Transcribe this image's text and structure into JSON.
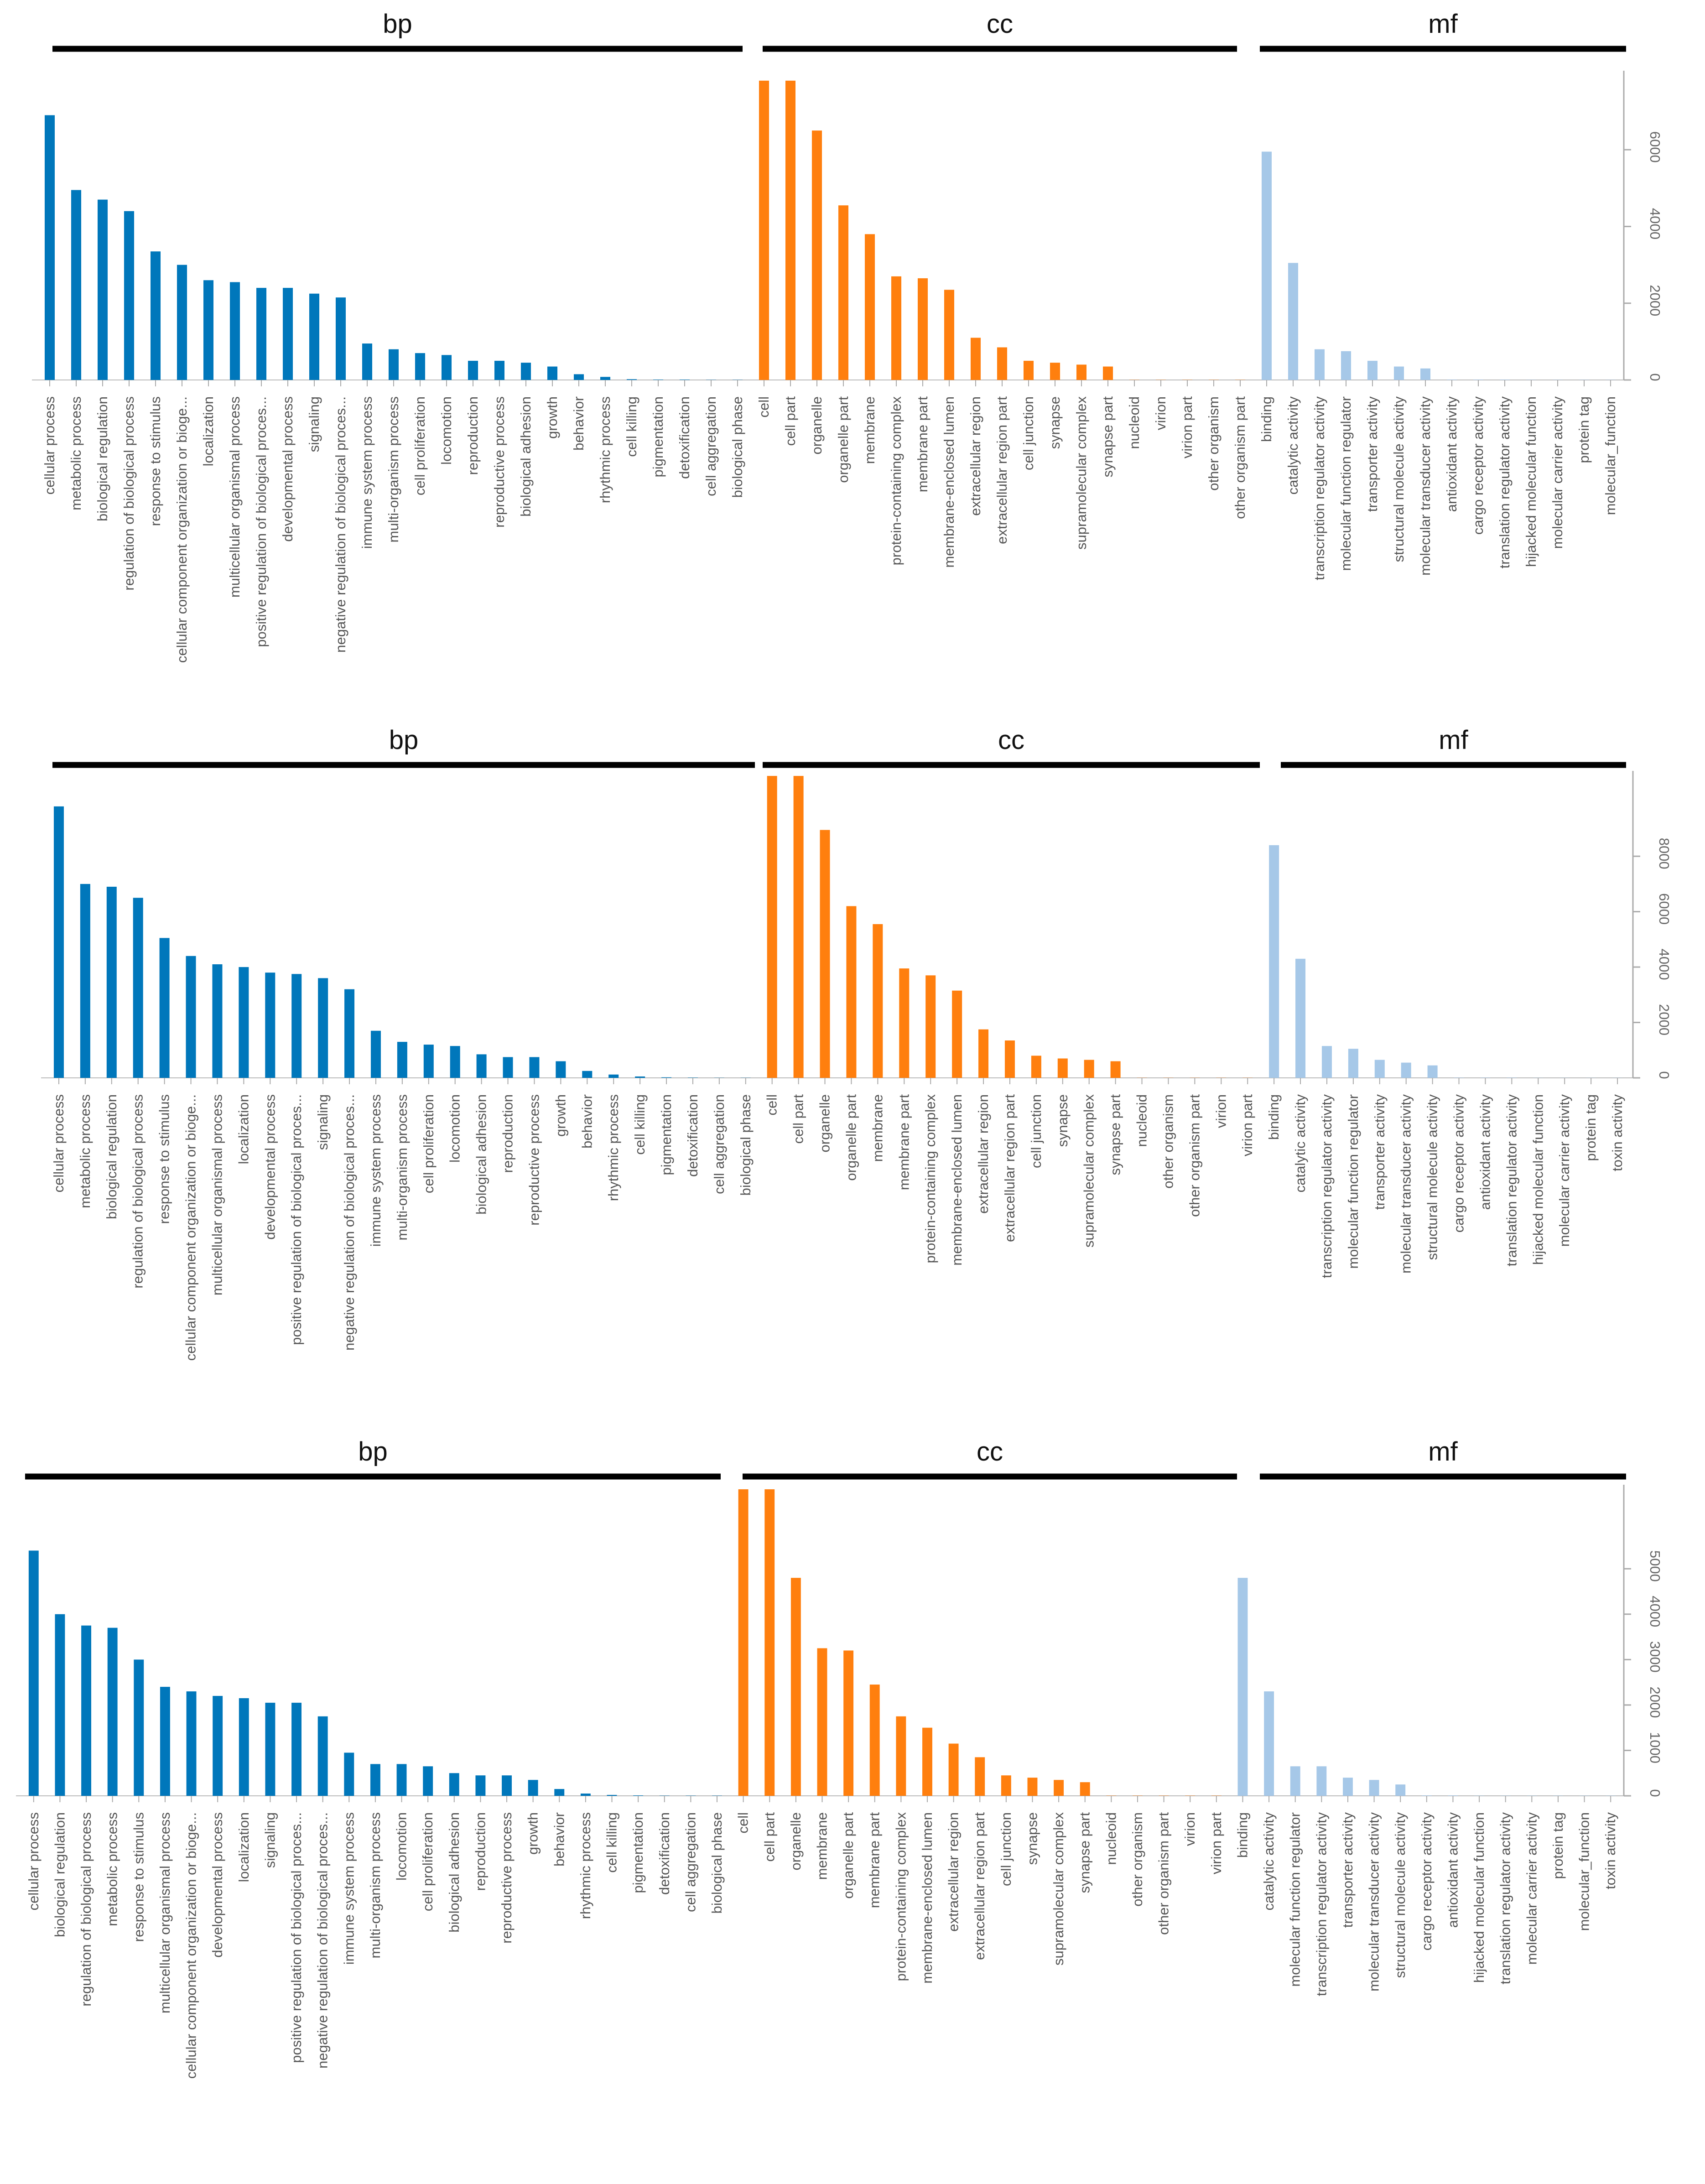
{
  "chart_data": [
    {
      "type": "bar",
      "title": "",
      "groups": [
        {
          "name": "bp",
          "color": "#0077bb",
          "categories": [
            "cellular process",
            "metabolic process",
            "biological regulation",
            "regulation of biological process",
            "response to stimulus",
            "cellular component organization or bioge...",
            "localization",
            "multicellular organismal process",
            "positive regulation of biological proces...",
            "developmental process",
            "signaling",
            "negative regulation of biological proces...",
            "immune system process",
            "multi-organism process",
            "cell proliferation",
            "locomotion",
            "reproduction",
            "reproductive process",
            "biological adhesion",
            "growth",
            "behavior",
            "rhythmic process",
            "cell killing",
            "pigmentation",
            "detoxification",
            "cell aggregation",
            "biological phase"
          ],
          "values": [
            6900,
            4950,
            4700,
            4400,
            3350,
            3000,
            2600,
            2550,
            2400,
            2400,
            2250,
            2150,
            950,
            800,
            700,
            650,
            500,
            500,
            450,
            350,
            150,
            80,
            20,
            10,
            10,
            5,
            5
          ]
        },
        {
          "name": "cc",
          "color": "#ff7f0e",
          "categories": [
            "cell",
            "cell part",
            "organelle",
            "organelle part",
            "membrane",
            "protein-containing complex",
            "membrane part",
            "membrane-enclosed lumen",
            "extracellular region",
            "extracellular region part",
            "cell junction",
            "synapse",
            "supramolecular complex",
            "synapse part",
            "nucleoid",
            "virion",
            "virion part",
            "other organism",
            "other organism part"
          ],
          "values": [
            7800,
            7800,
            6500,
            4550,
            3800,
            2700,
            2650,
            2350,
            1100,
            850,
            500,
            450,
            400,
            350,
            5,
            5,
            5,
            5,
            5
          ]
        },
        {
          "name": "mf",
          "color": "#a6c8e8",
          "categories": [
            "binding",
            "catalytic activity",
            "transcription regulator activity",
            "molecular function regulator",
            "transporter activity",
            "structural molecule activity",
            "molecular transducer activity",
            "antioxidant activity",
            "cargo receptor activity",
            "translation regulator activity",
            "hijacked molecular function",
            "molecular carrier activity",
            "protein tag",
            "molecular_function"
          ],
          "values": [
            5950,
            3050,
            800,
            750,
            500,
            350,
            300,
            10,
            10,
            10,
            5,
            5,
            5,
            5
          ]
        }
      ],
      "yaxis": {
        "ticks": [
          0,
          2000,
          4000,
          6000
        ],
        "tick_labels": [
          "0",
          "2000",
          "4000",
          "6000"
        ],
        "ylim": [
          0,
          8000
        ]
      }
    },
    {
      "type": "bar",
      "title": "",
      "groups": [
        {
          "name": "bp",
          "color": "#0077bb",
          "categories": [
            "cellular process",
            "metabolic process",
            "biological regulation",
            "regulation of biological process",
            "response to stimulus",
            "cellular component organization or bioge...",
            "multicellular organismal process",
            "localization",
            "developmental process",
            "positive regulation of biological proces...",
            "signaling",
            "negative regulation of biological proces...",
            "immune system process",
            "multi-organism process",
            "cell proliferation",
            "locomotion",
            "biological adhesion",
            "reproduction",
            "reproductive process",
            "growth",
            "behavior",
            "rhythmic process",
            "cell killing",
            "pigmentation",
            "detoxification",
            "cell aggregation",
            "biological phase"
          ],
          "values": [
            9800,
            7000,
            6900,
            6500,
            5050,
            4400,
            4100,
            4000,
            3800,
            3750,
            3600,
            3200,
            1700,
            1300,
            1200,
            1150,
            850,
            750,
            750,
            600,
            250,
            120,
            50,
            20,
            10,
            5,
            5
          ]
        },
        {
          "name": "cc",
          "color": "#ff7f0e",
          "categories": [
            "cell",
            "cell part",
            "organelle",
            "organelle part",
            "membrane",
            "membrane part",
            "protein-containing complex",
            "membrane-enclosed lumen",
            "extracellular region",
            "extracellular region part",
            "cell junction",
            "synapse",
            "supramolecular complex",
            "synapse part",
            "nucleoid",
            "other organism",
            "other organism part",
            "virion",
            "virion part"
          ],
          "values": [
            10900,
            10900,
            8950,
            6200,
            5550,
            3950,
            3700,
            3150,
            1750,
            1350,
            800,
            700,
            650,
            600,
            5,
            5,
            5,
            5,
            5
          ]
        },
        {
          "name": "mf",
          "color": "#a6c8e8",
          "categories": [
            "binding",
            "catalytic activity",
            "transcription regulator activity",
            "molecular function regulator",
            "transporter activity",
            "molecular transducer activity",
            "structural molecule activity",
            "cargo receptor activity",
            "antioxidant activity",
            "translation regulator activity",
            "hijacked molecular function",
            "molecular carrier activity",
            "protein tag",
            "toxin activity"
          ],
          "values": [
            8400,
            4300,
            1150,
            1050,
            650,
            550,
            450,
            10,
            10,
            10,
            5,
            5,
            5,
            5
          ]
        }
      ],
      "yaxis": {
        "ticks": [
          0,
          2000,
          4000,
          6000,
          8000
        ],
        "tick_labels": [
          "0",
          "2000",
          "4000",
          "6000",
          "8000"
        ],
        "ylim": [
          0,
          11000
        ]
      }
    },
    {
      "type": "bar",
      "title": "",
      "groups": [
        {
          "name": "bp",
          "color": "#0077bb",
          "categories": [
            "cellular process",
            "biological regulation",
            "regulation of biological process",
            "metabolic process",
            "response to stimulus",
            "multicellular organismal process",
            "cellular component organization or bioge...",
            "developmental process",
            "localization",
            "signaling",
            "positive regulation of biological proces...",
            "negative regulation of biological proces...",
            "immune system process",
            "multi-organism process",
            "locomotion",
            "cell proliferation",
            "biological adhesion",
            "reproduction",
            "reproductive process",
            "growth",
            "behavior",
            "rhythmic process",
            "cell killing",
            "pigmentation",
            "detoxification",
            "cell aggregation",
            "biological phase"
          ],
          "values": [
            5400,
            4000,
            3750,
            3700,
            3000,
            2400,
            2300,
            2200,
            2150,
            2050,
            2050,
            1750,
            950,
            700,
            700,
            650,
            500,
            450,
            450,
            350,
            150,
            50,
            20,
            10,
            5,
            5,
            5
          ]
        },
        {
          "name": "cc",
          "color": "#ff7f0e",
          "categories": [
            "cell",
            "cell part",
            "organelle",
            "membrane",
            "organelle part",
            "membrane part",
            "protein-containing complex",
            "membrane-enclosed lumen",
            "extracellular region",
            "extracellular region part",
            "cell junction",
            "synapse",
            "supramolecular complex",
            "synapse part",
            "nucleoid",
            "other organism",
            "other organism part",
            "virion",
            "virion part"
          ],
          "values": [
            6750,
            6750,
            4800,
            3250,
            3200,
            2450,
            1750,
            1500,
            1150,
            850,
            450,
            400,
            350,
            300,
            5,
            5,
            5,
            5,
            5
          ]
        },
        {
          "name": "mf",
          "color": "#a6c8e8",
          "categories": [
            "binding",
            "catalytic activity",
            "molecular function regulator",
            "transcription regulator activity",
            "transporter activity",
            "molecular transducer activity",
            "structural molecule activity",
            "cargo receptor activity",
            "antioxidant activity",
            "hijacked molecular function",
            "translation regulator activity",
            "molecular carrier activity",
            "protein tag",
            "molecular_function",
            "toxin activity"
          ],
          "values": [
            4800,
            2300,
            650,
            650,
            400,
            350,
            250,
            10,
            10,
            5,
            5,
            5,
            5,
            5,
            5
          ]
        }
      ],
      "yaxis": {
        "ticks": [
          0,
          1000,
          2000,
          3000,
          4000,
          5000
        ],
        "tick_labels": [
          "0",
          "1000",
          "2000",
          "3000",
          "4000",
          "5000"
        ],
        "ylim": [
          0,
          6800
        ]
      }
    }
  ]
}
